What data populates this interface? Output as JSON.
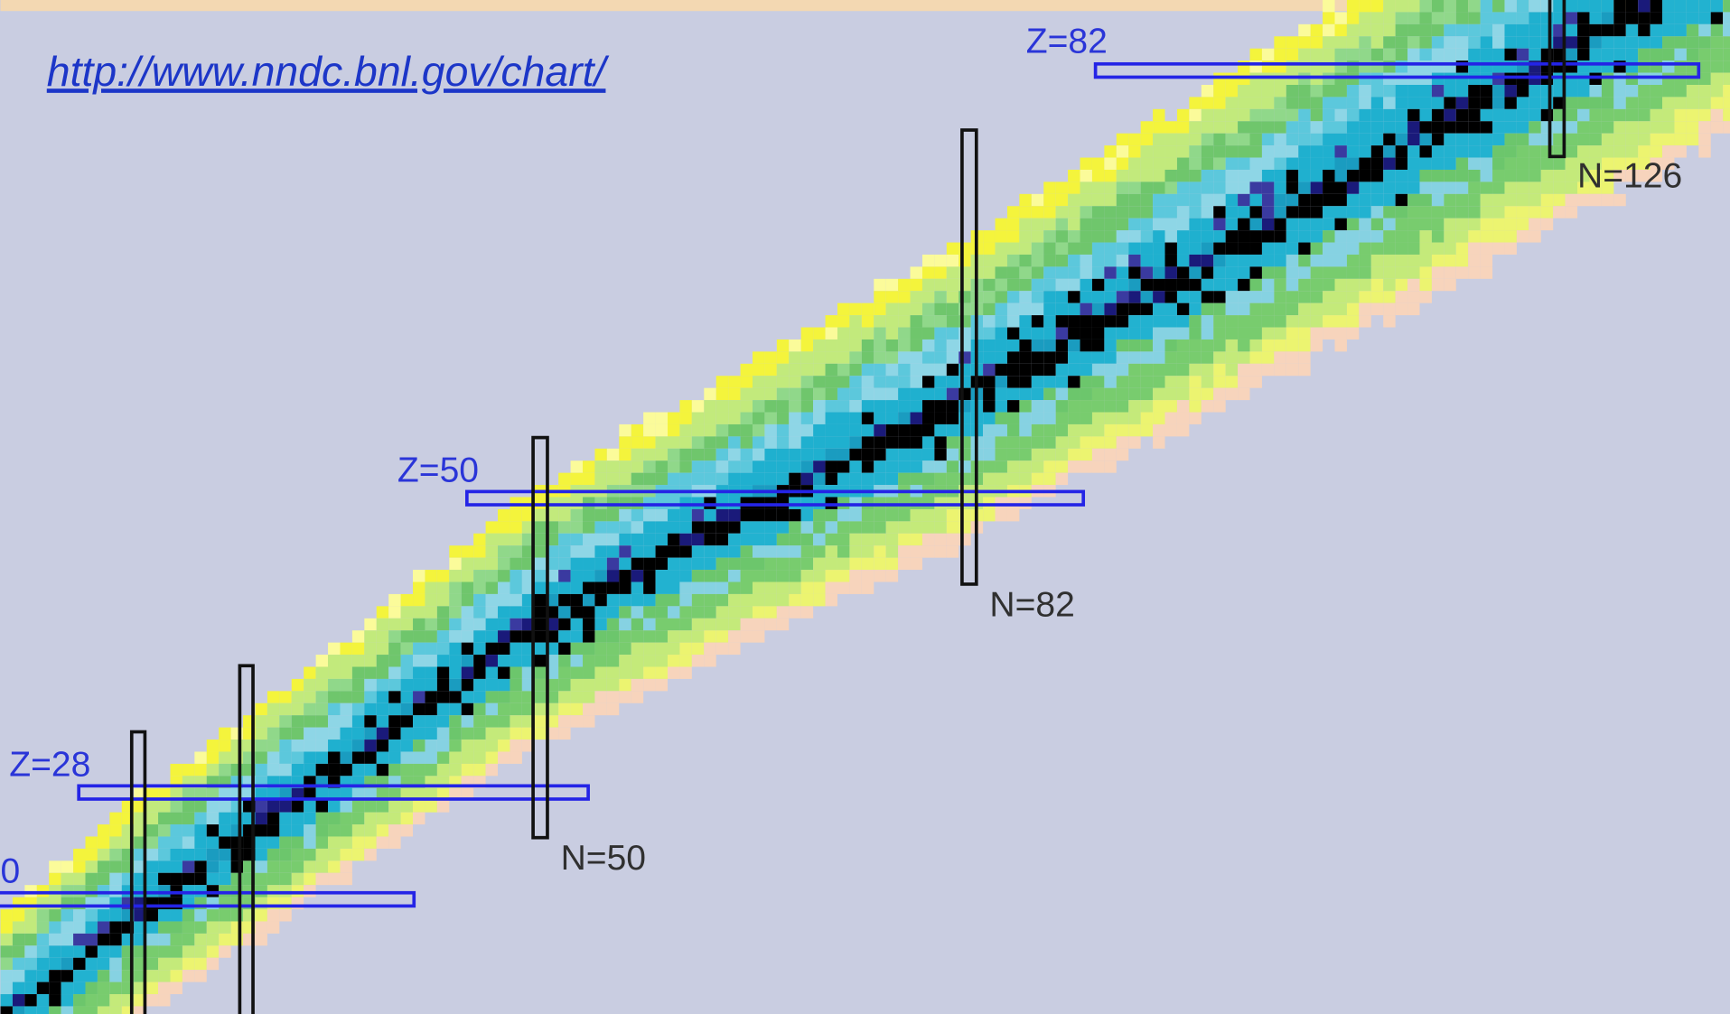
{
  "url": "http://www.nndc.bnl.gov/chart/",
  "proton_labels": [
    "Z=82",
    "Z=50",
    "Z=28",
    "0"
  ],
  "neutron_labels": [
    "N=126",
    "N=82",
    "N=50"
  ]
}
